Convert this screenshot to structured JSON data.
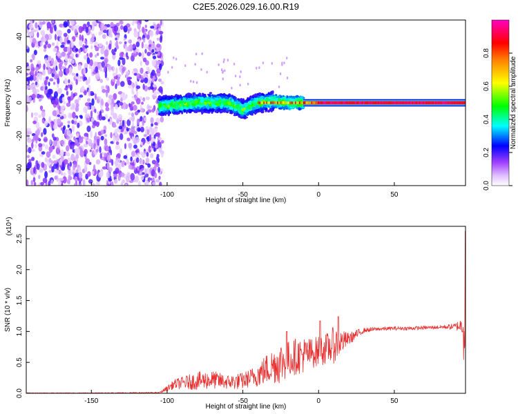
{
  "title": "C2E5.2026.029.16.00.R19",
  "chart_data": [
    {
      "type": "heatmap",
      "xlabel": "Height of straight line (km)",
      "ylabel": "Frequency (Hz)",
      "xlim": [
        -193,
        97
      ],
      "ylim": [
        -50,
        50
      ],
      "x_ticks": [
        -150,
        -100,
        -50,
        0,
        50
      ],
      "y_ticks": [
        -40,
        -20,
        0,
        20,
        40
      ],
      "grid": false,
      "colorbar": {
        "label": "Normalized spectral amplitude",
        "range": [
          0,
          1
        ],
        "ticks": [
          "0.0",
          "0.2",
          "0.4",
          "0.6",
          "0.8"
        ],
        "colors": [
          "#ffffff",
          "#b060ff",
          "#0000ff",
          "#00ffff",
          "#00ff00",
          "#ffff00",
          "#ff8000",
          "#ff0000",
          "#ff00c0"
        ]
      },
      "regions": [
        {
          "x_range": [
            -193,
            -105
          ],
          "y_range": [
            -50,
            50
          ],
          "amplitude": [
            0.0,
            0.3
          ]
        },
        {
          "x_range": [
            -105,
            -10
          ],
          "y_range": [
            -9,
            8
          ],
          "amplitude": [
            0.2,
            0.6
          ]
        },
        {
          "x_range": [
            -10,
            97
          ],
          "y_range": [
            -1.5,
            1.5
          ],
          "amplitude": [
            0.8,
            1.0
          ]
        }
      ],
      "ridge_center": {
        "x": [
          -105,
          -80,
          -60,
          -50,
          -40,
          -30,
          -20,
          -10,
          0,
          50,
          97
        ],
        "y": [
          -2,
          0,
          0,
          -4,
          0,
          1,
          0,
          0,
          0,
          0,
          0
        ]
      }
    },
    {
      "type": "line",
      "xlabel": "Height of straight line (km)",
      "ylabel": "SNR (10 * v/v)",
      "y_scale_label": "(x10⁴)",
      "xlim": [
        -193,
        97
      ],
      "ylim": [
        0,
        2.7
      ],
      "x_ticks": [
        -150,
        -100,
        -50,
        0,
        50
      ],
      "y_ticks": [
        "0.0",
        "0.5",
        "1.0",
        "1.5",
        "2.0",
        "2.5"
      ],
      "grid": false,
      "line_color": "#e83030",
      "envelope": {
        "x": [
          -193,
          -150,
          -105,
          -95,
          -80,
          -70,
          -60,
          -50,
          -45,
          -40,
          -35,
          -30,
          -25,
          -20,
          -15,
          -10,
          -5,
          0,
          5,
          10,
          15,
          20,
          25,
          30,
          40,
          50,
          60,
          70,
          80,
          90,
          95,
          97
        ],
        "y_mid": [
          0.005,
          0.005,
          0.01,
          0.15,
          0.2,
          0.22,
          0.18,
          0.2,
          0.25,
          0.3,
          0.38,
          0.45,
          0.5,
          0.55,
          0.6,
          0.62,
          0.65,
          0.68,
          0.72,
          0.78,
          0.83,
          0.88,
          0.95,
          1.02,
          1.04,
          1.05,
          1.05,
          1.06,
          1.07,
          1.08,
          1.1,
          1.2
        ],
        "y_amp": [
          0.005,
          0.005,
          0.01,
          0.08,
          0.15,
          0.15,
          0.12,
          0.14,
          0.15,
          0.2,
          0.25,
          0.3,
          0.35,
          0.3,
          0.3,
          0.3,
          0.25,
          0.25,
          0.25,
          0.3,
          0.2,
          0.1,
          0.08,
          0.04,
          0.03,
          0.03,
          0.03,
          0.03,
          0.03,
          0.05,
          0.15,
          1.4
        ]
      },
      "peaks": [
        {
          "x": -21,
          "y": 1.0
        },
        {
          "x": 1,
          "y": 1.17
        },
        {
          "x": 13,
          "y": 1.24
        },
        {
          "x": 97,
          "y": 2.62
        }
      ]
    }
  ]
}
